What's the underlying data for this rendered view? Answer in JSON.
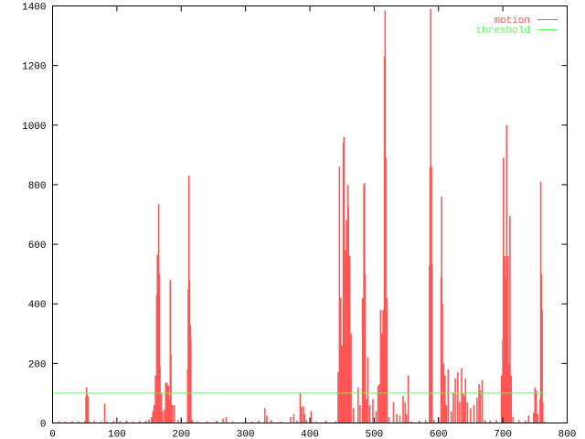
{
  "chart_data": {
    "type": "bar",
    "style": "impulses",
    "title": "",
    "xlabel": "",
    "ylabel": "",
    "xlim": [
      0,
      800
    ],
    "ylim": [
      0,
      1400
    ],
    "xticks": [
      0,
      100,
      200,
      300,
      400,
      500,
      600,
      700,
      800
    ],
    "yticks": [
      0,
      200,
      400,
      600,
      800,
      1000,
      1200,
      1400
    ],
    "grid": false,
    "legend_position": "top-right",
    "series": [
      {
        "name": "motion",
        "color": "#ff5555",
        "points": [
          [
            0,
            5
          ],
          [
            10,
            6
          ],
          [
            20,
            5
          ],
          [
            30,
            6
          ],
          [
            40,
            5
          ],
          [
            50,
            6
          ],
          [
            52,
            90
          ],
          [
            53,
            120
          ],
          [
            54,
            95
          ],
          [
            55,
            88
          ],
          [
            57,
            5
          ],
          [
            65,
            8
          ],
          [
            75,
            5
          ],
          [
            81,
            65
          ],
          [
            85,
            5
          ],
          [
            95,
            7
          ],
          [
            105,
            6
          ],
          [
            115,
            8
          ],
          [
            125,
            5
          ],
          [
            135,
            7
          ],
          [
            145,
            8
          ],
          [
            150,
            12
          ],
          [
            154,
            20
          ],
          [
            156,
            40
          ],
          [
            158,
            60
          ],
          [
            160,
            160
          ],
          [
            162,
            430
          ],
          [
            163,
            565
          ],
          [
            164,
            500
          ],
          [
            165,
            735
          ],
          [
            166,
            500
          ],
          [
            167,
            190
          ],
          [
            169,
            100
          ],
          [
            171,
            40
          ],
          [
            174,
            45
          ],
          [
            176,
            135
          ],
          [
            178,
            135
          ],
          [
            180,
            125
          ],
          [
            181,
            80
          ],
          [
            183,
            480
          ],
          [
            184,
            230
          ],
          [
            186,
            60
          ],
          [
            189,
            60
          ],
          [
            195,
            10
          ],
          [
            200,
            15
          ],
          [
            210,
            180
          ],
          [
            211,
            450
          ],
          [
            212,
            830
          ],
          [
            213,
            480
          ],
          [
            214,
            330
          ],
          [
            215,
            280
          ],
          [
            217,
            10
          ],
          [
            225,
            6
          ],
          [
            240,
            5
          ],
          [
            255,
            8
          ],
          [
            265,
            15
          ],
          [
            270,
            20
          ],
          [
            280,
            5
          ],
          [
            300,
            6
          ],
          [
            310,
            5
          ],
          [
            320,
            8
          ],
          [
            330,
            50
          ],
          [
            333,
            25
          ],
          [
            340,
            10
          ],
          [
            355,
            5
          ],
          [
            370,
            20
          ],
          [
            375,
            30
          ],
          [
            380,
            8
          ],
          [
            385,
            100
          ],
          [
            387,
            55
          ],
          [
            390,
            55
          ],
          [
            392,
            30
          ],
          [
            395,
            10
          ],
          [
            402,
            40
          ],
          [
            410,
            5
          ],
          [
            425,
            8
          ],
          [
            440,
            6
          ],
          [
            444,
            170
          ],
          [
            446,
            860
          ],
          [
            448,
            420
          ],
          [
            450,
            260
          ],
          [
            452,
            940
          ],
          [
            453,
            960
          ],
          [
            455,
            580
          ],
          [
            457,
            680
          ],
          [
            459,
            800
          ],
          [
            460,
            725
          ],
          [
            462,
            560
          ],
          [
            464,
            300
          ],
          [
            468,
            50
          ],
          [
            475,
            120
          ],
          [
            478,
            60
          ],
          [
            482,
            420
          ],
          [
            484,
            800
          ],
          [
            485,
            805
          ],
          [
            486,
            500
          ],
          [
            488,
            80
          ],
          [
            490,
            220
          ],
          [
            493,
            60
          ],
          [
            498,
            80
          ],
          [
            503,
            40
          ],
          [
            506,
            125
          ],
          [
            508,
            130
          ],
          [
            510,
            380
          ],
          [
            512,
            300
          ],
          [
            514,
            380
          ],
          [
            516,
            1230
          ],
          [
            517,
            1385
          ],
          [
            518,
            890
          ],
          [
            520,
            420
          ],
          [
            523,
            20
          ],
          [
            530,
            70
          ],
          [
            535,
            30
          ],
          [
            540,
            25
          ],
          [
            545,
            90
          ],
          [
            548,
            70
          ],
          [
            550,
            30
          ],
          [
            553,
            160
          ],
          [
            558,
            5
          ],
          [
            570,
            8
          ],
          [
            580,
            10
          ],
          [
            586,
            530
          ],
          [
            587,
            860
          ],
          [
            588,
            1390
          ],
          [
            589,
            860
          ],
          [
            590,
            530
          ],
          [
            593,
            10
          ],
          [
            600,
            20
          ],
          [
            604,
            490
          ],
          [
            605,
            760
          ],
          [
            606,
            400
          ],
          [
            608,
            200
          ],
          [
            610,
            160
          ],
          [
            612,
            60
          ],
          [
            615,
            180
          ],
          [
            620,
            40
          ],
          [
            623,
            100
          ],
          [
            626,
            150
          ],
          [
            630,
            170
          ],
          [
            633,
            70
          ],
          [
            636,
            185
          ],
          [
            638,
            100
          ],
          [
            640,
            90
          ],
          [
            642,
            150
          ],
          [
            645,
            70
          ],
          [
            650,
            50
          ],
          [
            655,
            60
          ],
          [
            660,
            85
          ],
          [
            663,
            130
          ],
          [
            665,
            110
          ],
          [
            668,
            145
          ],
          [
            672,
            10
          ],
          [
            680,
            8
          ],
          [
            690,
            10
          ],
          [
            698,
            160
          ],
          [
            700,
            280
          ],
          [
            701,
            890
          ],
          [
            703,
            560
          ],
          [
            705,
            490
          ],
          [
            706,
            1000
          ],
          [
            708,
            560
          ],
          [
            710,
            200
          ],
          [
            711,
            695
          ],
          [
            713,
            160
          ],
          [
            716,
            20
          ],
          [
            725,
            10
          ],
          [
            735,
            8
          ],
          [
            740,
            25
          ],
          [
            748,
            35
          ],
          [
            750,
            120
          ],
          [
            752,
            110
          ],
          [
            754,
            30
          ],
          [
            758,
            80
          ],
          [
            759,
            810
          ],
          [
            760,
            500
          ],
          [
            761,
            380
          ],
          [
            762,
            70
          ],
          [
            765,
            5
          ]
        ]
      },
      {
        "name": "threshold",
        "color": "#55ff55",
        "x": [
          0,
          765
        ],
        "values": [
          100,
          100
        ]
      }
    ]
  }
}
